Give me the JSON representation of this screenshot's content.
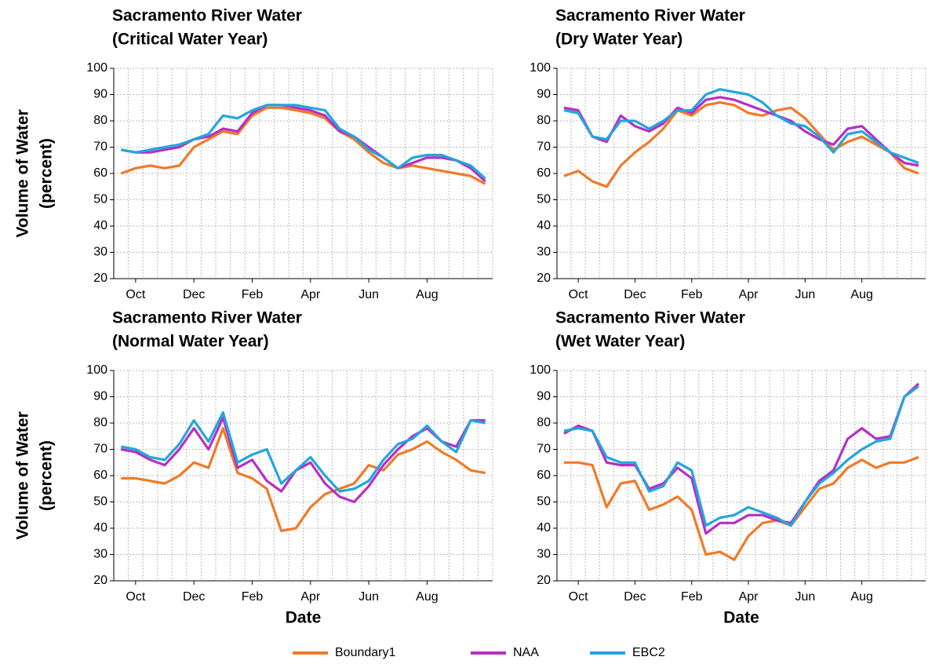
{
  "chart_data": [
    {
      "type": "line",
      "title": "Sacramento River Water",
      "subtitle": "(Critical Water Year)",
      "ylabel": [
        "Volume of Water",
        "(percent)"
      ],
      "categories": [
        null,
        "Oct",
        null,
        null,
        null,
        "Dec",
        null,
        null,
        null,
        "Feb",
        null,
        null,
        null,
        "Apr",
        null,
        null,
        null,
        "Jun",
        null,
        null,
        null,
        "Aug",
        null,
        null,
        null,
        null
      ],
      "ylim": [
        20,
        100
      ],
      "yticks": [
        20,
        30,
        40,
        50,
        60,
        70,
        80,
        90,
        100
      ],
      "grid": true,
      "legend": "bottom",
      "series": [
        {
          "name": "Boundary1",
          "color": "#f07a28",
          "values": [
            60,
            62,
            63,
            62,
            63,
            70,
            73,
            76,
            75,
            82,
            85,
            85,
            84,
            83,
            81,
            76,
            73,
            68,
            64,
            62,
            63,
            62,
            61,
            60,
            59,
            56
          ]
        },
        {
          "name": "NAA",
          "color": "#b62fc6",
          "values": [
            69,
            68,
            68,
            69,
            70,
            73,
            74,
            77,
            76,
            83,
            86,
            86,
            85,
            84,
            82,
            76,
            74,
            70,
            66,
            62,
            64,
            66,
            66,
            65,
            62,
            57
          ]
        },
        {
          "name": "EBC2",
          "color": "#23a6db",
          "values": [
            69,
            68,
            69,
            70,
            71,
            73,
            75,
            82,
            81,
            84,
            86,
            86,
            86,
            85,
            84,
            77,
            74,
            69,
            66,
            62,
            66,
            67,
            67,
            65,
            63,
            58
          ]
        }
      ]
    },
    {
      "type": "line",
      "title": "Sacramento River Water",
      "subtitle": "(Dry Water Year)",
      "categories": [
        null,
        "Oct",
        null,
        null,
        null,
        "Dec",
        null,
        null,
        null,
        "Feb",
        null,
        null,
        null,
        "Apr",
        null,
        null,
        null,
        "Jun",
        null,
        null,
        null,
        "Aug",
        null,
        null,
        null,
        null
      ],
      "ylim": [
        20,
        100
      ],
      "yticks": [
        20,
        30,
        40,
        50,
        60,
        70,
        80,
        90,
        100
      ],
      "grid": true,
      "series": [
        {
          "color": "#f07a28",
          "values": [
            59,
            61,
            57,
            55,
            63,
            68,
            72,
            77,
            84,
            82,
            86,
            87,
            86,
            83,
            82,
            84,
            85,
            81,
            75,
            69,
            72,
            74,
            71,
            68,
            62,
            60
          ]
        },
        {
          "color": "#b62fc6",
          "values": [
            85,
            84,
            74,
            72,
            82,
            78,
            76,
            79,
            85,
            83,
            88,
            89,
            88,
            86,
            84,
            82,
            80,
            76,
            73,
            71,
            77,
            78,
            73,
            68,
            64,
            63
          ]
        },
        {
          "color": "#23a6db",
          "values": [
            84,
            83,
            74,
            73,
            80,
            80,
            77,
            80,
            84,
            84,
            90,
            92,
            91,
            90,
            87,
            82,
            79,
            78,
            74,
            68,
            75,
            76,
            72,
            68,
            66,
            64
          ]
        }
      ]
    },
    {
      "type": "line",
      "title": "Sacramento River Water",
      "subtitle": "(Normal Water Year)",
      "ylabel": [
        "Volume of Water",
        "(percent)"
      ],
      "xlabel": "Date",
      "categories": [
        null,
        "Oct",
        null,
        null,
        null,
        "Dec",
        null,
        null,
        null,
        "Feb",
        null,
        null,
        null,
        "Apr",
        null,
        null,
        null,
        "Jun",
        null,
        null,
        null,
        "Aug",
        null,
        null,
        null,
        null
      ],
      "ylim": [
        20,
        100
      ],
      "yticks": [
        20,
        30,
        40,
        50,
        60,
        70,
        80,
        90,
        100
      ],
      "grid": true,
      "series": [
        {
          "color": "#f07a28",
          "values": [
            59,
            59,
            58,
            57,
            60,
            65,
            63,
            78,
            61,
            59,
            55,
            39,
            40,
            48,
            53,
            55,
            57,
            64,
            62,
            68,
            70,
            73,
            69,
            66,
            62,
            61
          ]
        },
        {
          "color": "#b62fc6",
          "values": [
            70,
            69,
            66,
            64,
            70,
            78,
            70,
            82,
            63,
            66,
            58,
            54,
            62,
            65,
            57,
            52,
            50,
            56,
            64,
            70,
            75,
            78,
            73,
            71,
            81,
            81
          ]
        },
        {
          "color": "#23a6db",
          "values": [
            71,
            70,
            67,
            66,
            72,
            81,
            73,
            84,
            65,
            68,
            70,
            57,
            62,
            67,
            60,
            54,
            55,
            58,
            66,
            72,
            74,
            79,
            73,
            69,
            81,
            80
          ]
        }
      ]
    },
    {
      "type": "line",
      "title": "Sacramento River Water",
      "subtitle": "(Wet Water Year)",
      "xlabel": "Date",
      "categories": [
        null,
        "Oct",
        null,
        null,
        null,
        "Dec",
        null,
        null,
        null,
        "Feb",
        null,
        null,
        null,
        "Apr",
        null,
        null,
        null,
        "Jun",
        null,
        null,
        null,
        "Aug",
        null,
        null,
        null,
        null
      ],
      "ylim": [
        20,
        100
      ],
      "yticks": [
        20,
        30,
        40,
        50,
        60,
        70,
        80,
        90,
        100
      ],
      "grid": true,
      "series": [
        {
          "color": "#f07a28",
          "values": [
            65,
            65,
            64,
            48,
            57,
            58,
            47,
            49,
            52,
            47,
            30,
            31,
            28,
            37,
            42,
            43,
            41,
            48,
            55,
            57,
            63,
            66,
            63,
            65,
            65,
            67
          ]
        },
        {
          "color": "#b62fc6",
          "values": [
            76,
            79,
            77,
            65,
            64,
            64,
            55,
            57,
            63,
            59,
            38,
            42,
            42,
            45,
            45,
            43,
            42,
            50,
            58,
            62,
            74,
            78,
            74,
            75,
            90,
            95
          ]
        },
        {
          "color": "#23a6db",
          "values": [
            77,
            78,
            77,
            67,
            65,
            65,
            54,
            56,
            65,
            62,
            41,
            44,
            45,
            48,
            46,
            44,
            41,
            50,
            57,
            61,
            66,
            70,
            73,
            74,
            90,
            94
          ]
        }
      ]
    }
  ]
}
